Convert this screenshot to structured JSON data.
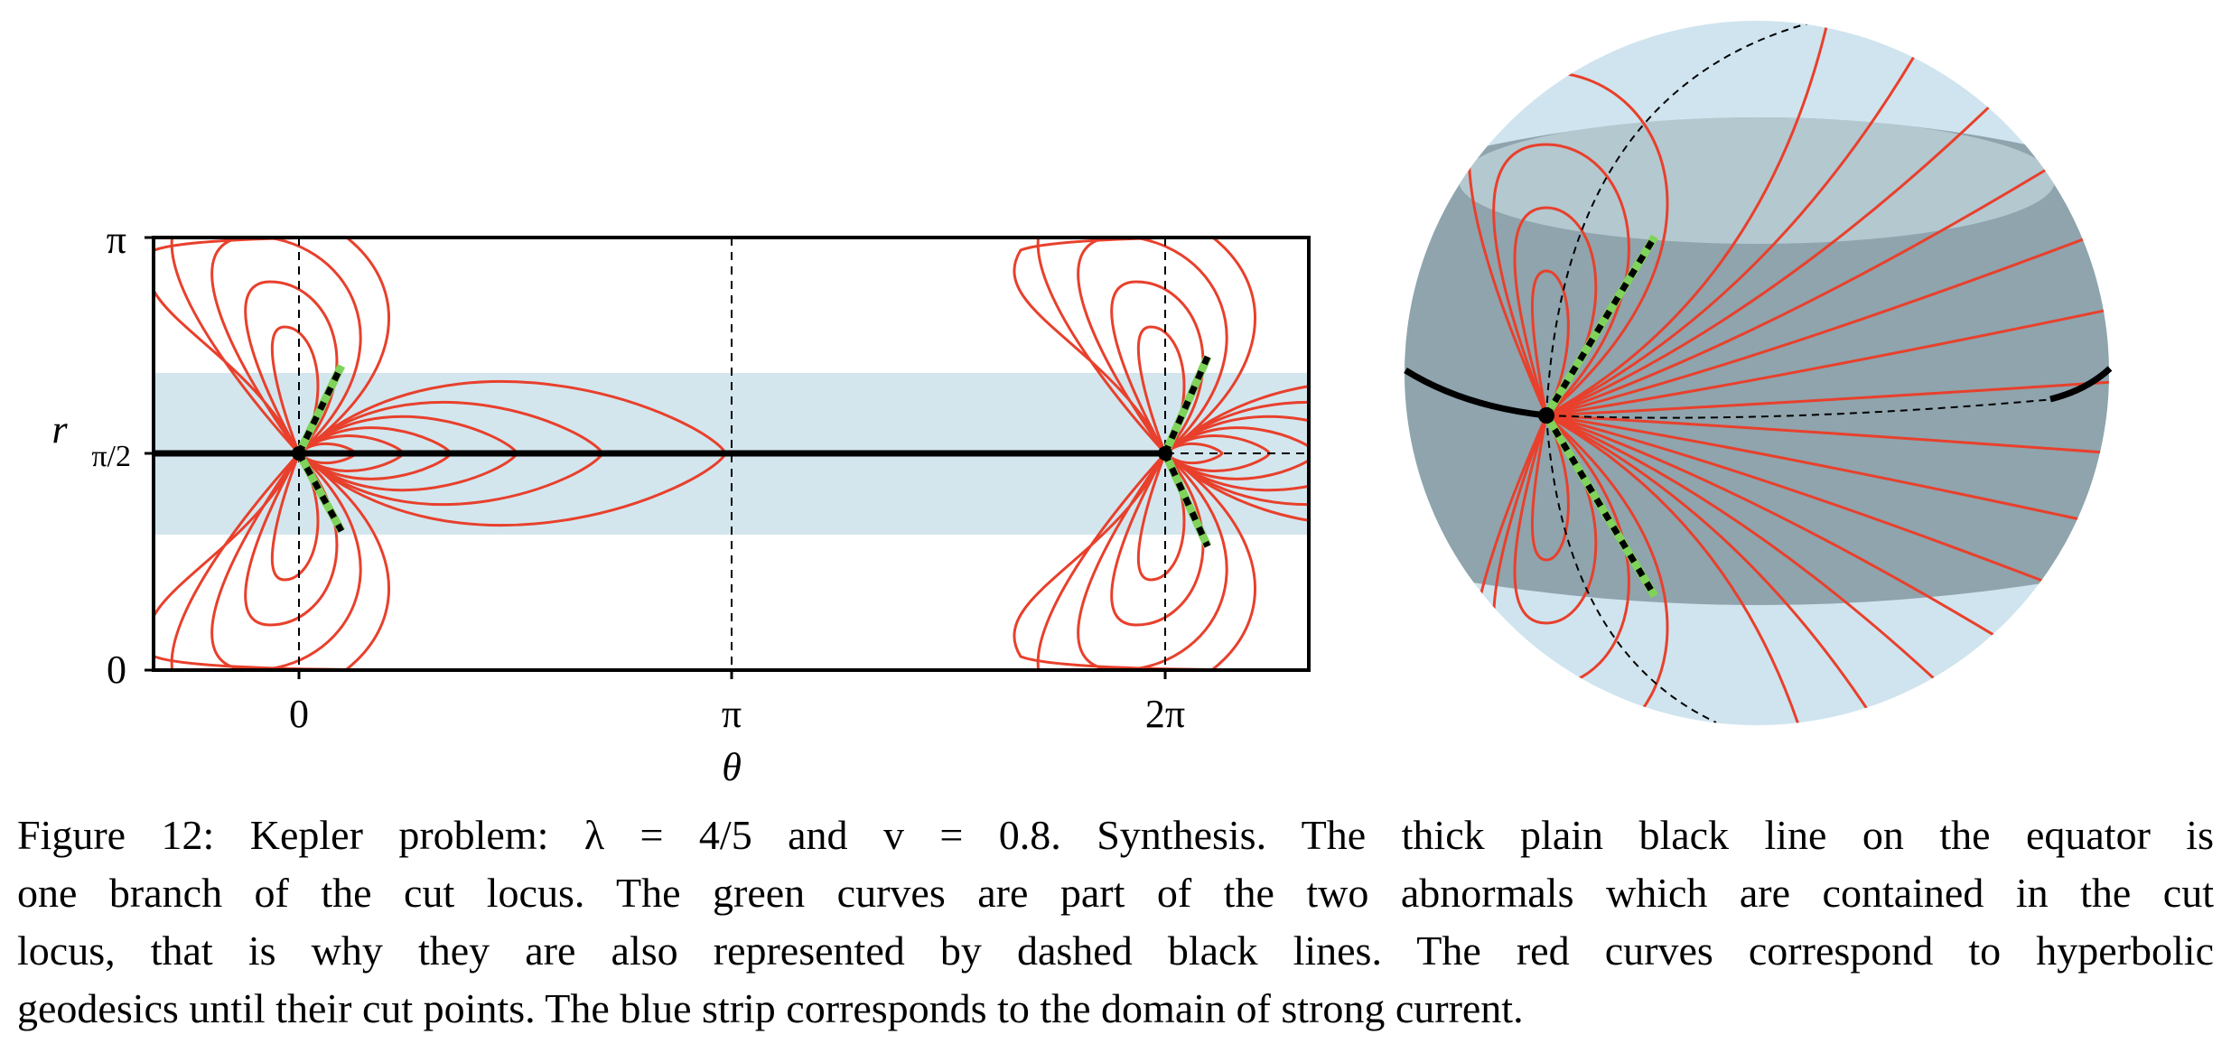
{
  "figure": {
    "left_panel": {
      "y_axis_label": "r",
      "y_tick_labels": [
        "0",
        "π/2",
        "π"
      ],
      "x_axis_label": "θ",
      "x_tick_labels": [
        "0",
        "π",
        "2π"
      ]
    },
    "caption_lines": [
      "Figure 12: Kepler problem: λ = 4/5 and v = 0.8. Synthesis. The thick plain black line on the equator is",
      "one branch of the cut locus. The green curves are part of the two abnormals which are contained in the cut",
      "locus, that is why they are also represented by dashed black lines. The red curves correspond to hyperbolic",
      "geodesics until their cut points. The blue strip corresponds to the domain of strong current."
    ]
  }
}
